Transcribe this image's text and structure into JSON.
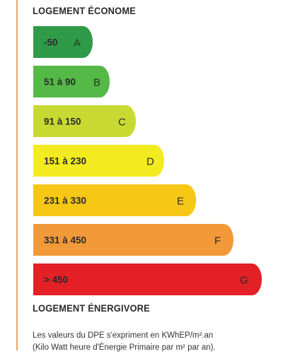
{
  "header": {
    "title": "LOGEMENT ÉCONOME"
  },
  "scale": {
    "classes": [
      {
        "range": "-50",
        "letter": "A",
        "color": "#2f9a48"
      },
      {
        "range": "51 à 90",
        "letter": "B",
        "color": "#55b947"
      },
      {
        "range": "91 à 150",
        "letter": "C",
        "color": "#c8da32"
      },
      {
        "range": "151 à 230",
        "letter": "D",
        "color": "#f2eb1f"
      },
      {
        "range": "231 à 330",
        "letter": "E",
        "color": "#f7c716"
      },
      {
        "range": "331 à 450",
        "letter": "F",
        "color": "#f29a3a"
      },
      {
        "range": "> 450",
        "letter": "G",
        "color": "#e42027"
      }
    ]
  },
  "footer": {
    "title": "LOGEMENT ÉNERGIVORE",
    "note_line1": "Les valeurs du DPE s'expriment en KWhEP/m².an",
    "note_line2": "(Kilo Watt heure d'Énergie Primaire par m² par an)."
  }
}
